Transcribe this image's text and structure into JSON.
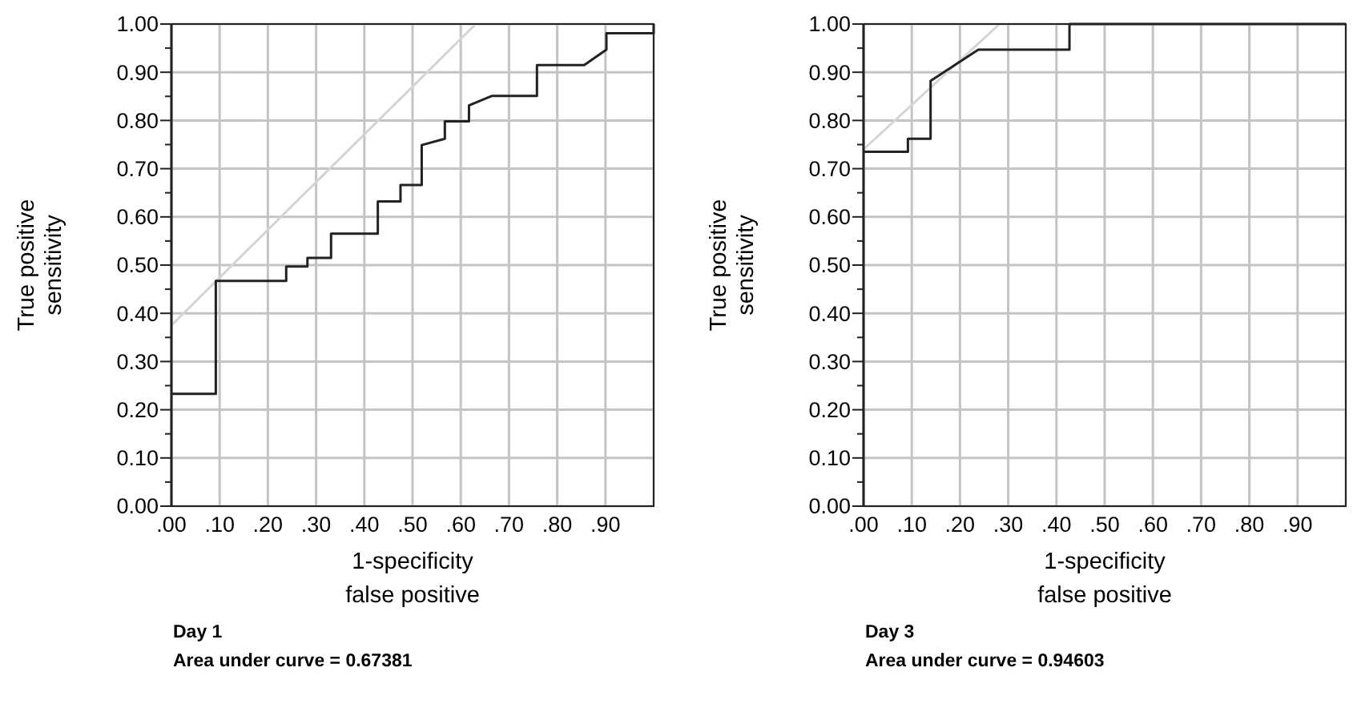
{
  "chart_data": [
    {
      "type": "line",
      "xlabel": "1-specificity\nfalse positive",
      "ylabel": "True positive\nsensitivity",
      "annotations": [
        "Day 1",
        "Area under curve = 0.67381"
      ],
      "xlim": [
        0,
        1
      ],
      "ylim": [
        0,
        1
      ],
      "xticks": [
        {
          "value": 0,
          "label": ".00"
        },
        {
          "value": 0.1,
          "label": ".10"
        },
        {
          "value": 0.2,
          "label": ".20"
        },
        {
          "value": 0.3,
          "label": ".30"
        },
        {
          "value": 0.4,
          "label": ".40"
        },
        {
          "value": 0.5,
          "label": ".50"
        },
        {
          "value": 0.6,
          "label": ".60"
        },
        {
          "value": 0.7,
          "label": ".70"
        },
        {
          "value": 0.8,
          "label": ".80"
        },
        {
          "value": 0.9,
          "label": ".90"
        }
      ],
      "yticks": [
        {
          "value": 0,
          "label": "0.00"
        },
        {
          "value": 0.05,
          "label": null
        },
        {
          "value": 0.1,
          "label": "0.10"
        },
        {
          "value": 0.15,
          "label": null
        },
        {
          "value": 0.2,
          "label": "0.20"
        },
        {
          "value": 0.25,
          "label": null
        },
        {
          "value": 0.3,
          "label": "0.30"
        },
        {
          "value": 0.35,
          "label": null
        },
        {
          "value": 0.4,
          "label": "0.40"
        },
        {
          "value": 0.45,
          "label": null
        },
        {
          "value": 0.5,
          "label": "0.50"
        },
        {
          "value": 0.55,
          "label": null
        },
        {
          "value": 0.6,
          "label": "0.60"
        },
        {
          "value": 0.65,
          "label": null
        },
        {
          "value": 0.7,
          "label": "0.70"
        },
        {
          "value": 0.75,
          "label": null
        },
        {
          "value": 0.8,
          "label": "0.80"
        },
        {
          "value": 0.85,
          "label": null
        },
        {
          "value": 0.9,
          "label": "0.90"
        },
        {
          "value": 0.95,
          "label": null
        },
        {
          "value": 1,
          "label": "1.00"
        }
      ],
      "grid": true,
      "marker": "none",
      "series": [
        {
          "color": "#d4d4d4",
          "x": [
            0,
            0.628
          ],
          "values": [
            0.375,
            0.997
          ]
        },
        {
          "color": "#222222",
          "x": [
            0,
            0.092,
            0.092,
            0.238,
            0.238,
            0.282,
            0.282,
            0.331,
            0.331,
            0.428,
            0.428,
            0.475,
            0.475,
            0.519,
            0.519,
            0.567,
            0.567,
            0.617,
            0.617,
            0.665,
            0.758,
            0.758,
            0.856,
            0.902,
            0.902,
            1,
            1
          ],
          "values": [
            0.233,
            0.233,
            0.467,
            0.467,
            0.497,
            0.497,
            0.515,
            0.515,
            0.565,
            0.565,
            0.632,
            0.632,
            0.666,
            0.666,
            0.749,
            0.762,
            0.798,
            0.798,
            0.831,
            0.851,
            0.851,
            0.915,
            0.915,
            0.947,
            0.981,
            0.981,
            1
          ]
        }
      ]
    },
    {
      "type": "line",
      "xlabel": "1-specificity\nfalse positive",
      "ylabel": "True positive\nsensitivity",
      "annotations": [
        "Day 3",
        "Area under curve = 0.94603"
      ],
      "xlim": [
        0,
        1
      ],
      "ylim": [
        0,
        1
      ],
      "xticks": [
        {
          "value": 0,
          "label": ".00"
        },
        {
          "value": 0.1,
          "label": ".10"
        },
        {
          "value": 0.2,
          "label": ".20"
        },
        {
          "value": 0.3,
          "label": ".30"
        },
        {
          "value": 0.4,
          "label": ".40"
        },
        {
          "value": 0.5,
          "label": ".50"
        },
        {
          "value": 0.6,
          "label": ".60"
        },
        {
          "value": 0.7,
          "label": ".70"
        },
        {
          "value": 0.8,
          "label": ".80"
        },
        {
          "value": 0.9,
          "label": ".90"
        }
      ],
      "yticks": [
        {
          "value": 0,
          "label": "0.00"
        },
        {
          "value": 0.05,
          "label": null
        },
        {
          "value": 0.1,
          "label": "0.10"
        },
        {
          "value": 0.15,
          "label": null
        },
        {
          "value": 0.2,
          "label": "0.20"
        },
        {
          "value": 0.25,
          "label": null
        },
        {
          "value": 0.3,
          "label": "0.30"
        },
        {
          "value": 0.35,
          "label": null
        },
        {
          "value": 0.4,
          "label": "0.40"
        },
        {
          "value": 0.45,
          "label": null
        },
        {
          "value": 0.5,
          "label": "0.50"
        },
        {
          "value": 0.55,
          "label": null
        },
        {
          "value": 0.6,
          "label": "0.60"
        },
        {
          "value": 0.65,
          "label": null
        },
        {
          "value": 0.7,
          "label": "0.70"
        },
        {
          "value": 0.75,
          "label": null
        },
        {
          "value": 0.8,
          "label": "0.80"
        },
        {
          "value": 0.85,
          "label": null
        },
        {
          "value": 0.9,
          "label": "0.90"
        },
        {
          "value": 0.95,
          "label": null
        },
        {
          "value": 1,
          "label": "1.00"
        }
      ],
      "grid": true,
      "marker": "none",
      "series": [
        {
          "color": "#d4d4d4",
          "x": [
            0,
            0.282
          ],
          "values": [
            0.74,
            1
          ]
        },
        {
          "color": "#222222",
          "x": [
            0,
            0.092,
            0.092,
            0.139,
            0.139,
            0.238,
            0.427,
            0.427,
            1
          ],
          "values": [
            0.735,
            0.735,
            0.762,
            0.762,
            0.882,
            0.947,
            0.947,
            1,
            1
          ]
        }
      ]
    }
  ]
}
